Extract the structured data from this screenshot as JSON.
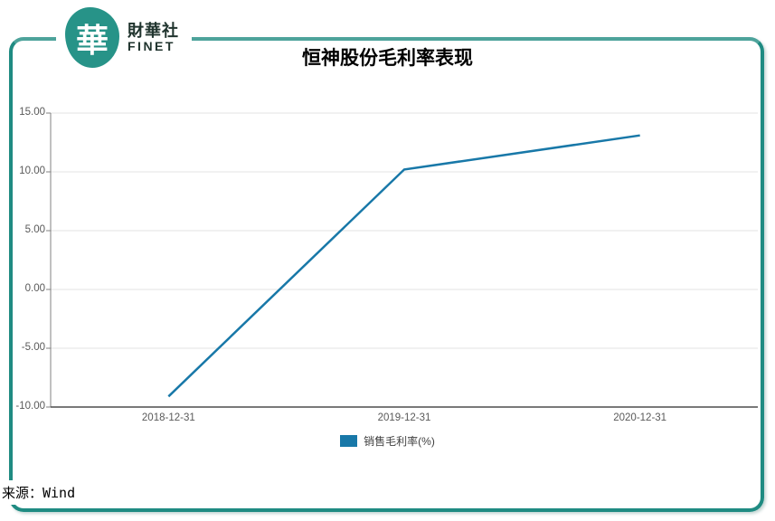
{
  "header": {
    "logo": {
      "glyph": "華",
      "name_cn": "財華社",
      "name_en": "FINET"
    },
    "title": "恒神股份毛利率表现"
  },
  "chart_data": {
    "type": "line",
    "title": "恒神股份毛利率表现",
    "categories": [
      "2018-12-31",
      "2019-12-31",
      "2020-12-31"
    ],
    "series": [
      {
        "name": "销售毛利率(%)",
        "color": "#1878a8",
        "values": [
          -9.1,
          10.2,
          13.1
        ]
      }
    ],
    "xlabel": "",
    "ylabel": "",
    "ylim": [
      -10,
      15
    ],
    "yticks": [
      15,
      10,
      5,
      0,
      -5,
      -10
    ],
    "ytick_format": "0.00",
    "grid": true,
    "legend_position": "bottom-center"
  },
  "footer": {
    "source": "来源：Wind"
  },
  "colors": {
    "frame": "#1f8b82",
    "line": "#1878a8",
    "grid": "#e3e3e3",
    "y_axis": "#808080",
    "x_axis": "#4d4d4d",
    "tick_label": "#595959",
    "logo": "#279388",
    "logo_text": "#20342e"
  }
}
